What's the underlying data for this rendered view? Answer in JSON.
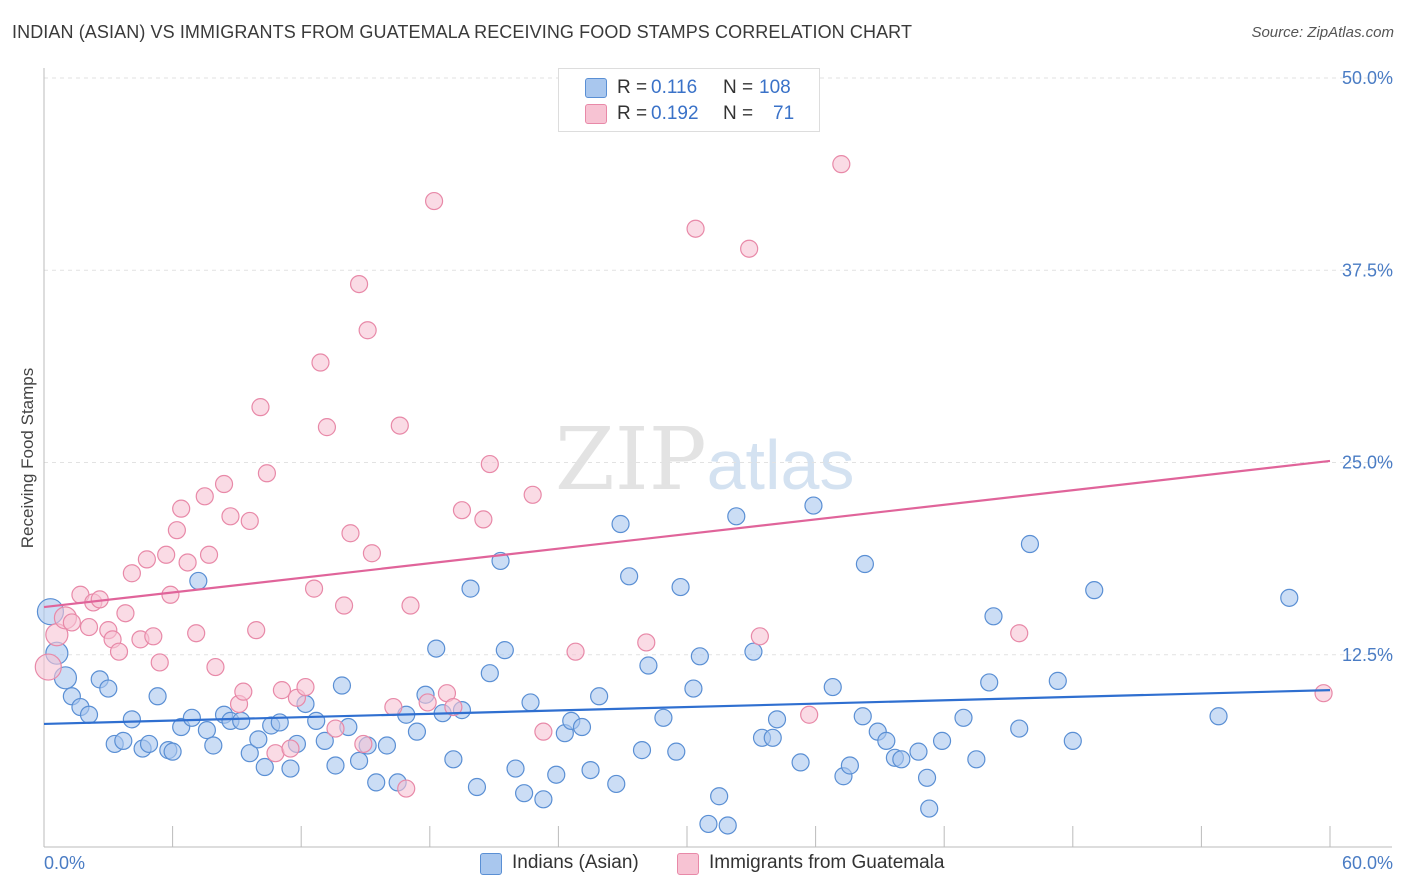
{
  "header": {
    "title": "INDIAN (ASIAN) VS IMMIGRANTS FROM GUATEMALA RECEIVING FOOD STAMPS CORRELATION CHART",
    "source": "Source: ZipAtlas.com"
  },
  "watermark": {
    "zip": "ZIP",
    "atlas": "atlas"
  },
  "legend": {
    "r_label": "R =",
    "n_label": "N =",
    "rows": [
      {
        "r": "0.116",
        "n": "108"
      },
      {
        "r": "0.192",
        "n": "71"
      }
    ]
  },
  "bottom_legend": {
    "blue": "Indians (Asian)",
    "pink": "Immigrants from Guatemala"
  },
  "colors": {
    "blue_fill": "#a9c7ee",
    "blue_stroke": "#5a8fd4",
    "blue_line": "#2f6fd0",
    "pink_fill": "#f7c3d3",
    "pink_stroke": "#e889a8",
    "pink_line": "#e0649a",
    "tick_text": "#4a7cc4"
  },
  "chart_data": {
    "type": "scatter",
    "title": "INDIAN (ASIAN) VS IMMIGRANTS FROM GUATEMALA RECEIVING FOOD STAMPS CORRELATION CHART",
    "xlabel": "",
    "ylabel": "Receiving Food Stamps",
    "xlim": [
      0,
      60
    ],
    "ylim": [
      0,
      50
    ],
    "x_tick_labels": [
      "0.0%",
      "60.0%"
    ],
    "y_tick_values": [
      12.5,
      25.0,
      37.5,
      50.0
    ],
    "y_tick_labels": [
      "12.5%",
      "25.0%",
      "37.5%",
      "50.0%"
    ],
    "grid": true,
    "legend_position": "top-center",
    "series": [
      {
        "name": "Indians (Asian)",
        "color": "#a9c7ee",
        "trend": {
          "x": [
            0,
            60
          ],
          "y": [
            8.0,
            10.2
          ]
        },
        "points": [
          [
            0.3,
            15.3
          ],
          [
            0.6,
            12.6
          ],
          [
            1.0,
            11.0
          ],
          [
            1.3,
            9.8
          ],
          [
            1.7,
            9.1
          ],
          [
            2.1,
            8.6
          ],
          [
            2.6,
            10.9
          ],
          [
            3.0,
            10.3
          ],
          [
            3.3,
            6.7
          ],
          [
            3.7,
            6.9
          ],
          [
            4.1,
            8.3
          ],
          [
            4.6,
            6.4
          ],
          [
            4.9,
            6.7
          ],
          [
            5.3,
            9.8
          ],
          [
            5.8,
            6.3
          ],
          [
            6.0,
            6.2
          ],
          [
            6.4,
            7.8
          ],
          [
            6.9,
            8.4
          ],
          [
            7.2,
            17.3
          ],
          [
            7.6,
            7.6
          ],
          [
            7.9,
            6.6
          ],
          [
            8.4,
            8.6
          ],
          [
            8.7,
            8.2
          ],
          [
            9.2,
            8.2
          ],
          [
            9.6,
            6.1
          ],
          [
            10.0,
            7.0
          ],
          [
            10.3,
            5.2
          ],
          [
            10.6,
            7.9
          ],
          [
            11.0,
            8.1
          ],
          [
            11.5,
            5.1
          ],
          [
            11.8,
            6.7
          ],
          [
            12.2,
            9.3
          ],
          [
            12.7,
            8.2
          ],
          [
            13.1,
            6.9
          ],
          [
            13.6,
            5.3
          ],
          [
            13.9,
            10.5
          ],
          [
            14.2,
            7.8
          ],
          [
            14.7,
            5.6
          ],
          [
            15.1,
            6.6
          ],
          [
            15.5,
            4.2
          ],
          [
            16.0,
            6.6
          ],
          [
            16.5,
            4.2
          ],
          [
            16.9,
            8.6
          ],
          [
            17.4,
            7.5
          ],
          [
            17.8,
            9.9
          ],
          [
            18.3,
            12.9
          ],
          [
            18.6,
            8.7
          ],
          [
            19.1,
            5.7
          ],
          [
            19.5,
            8.9
          ],
          [
            19.9,
            16.8
          ],
          [
            20.2,
            3.9
          ],
          [
            20.8,
            11.3
          ],
          [
            21.3,
            18.6
          ],
          [
            21.5,
            12.8
          ],
          [
            22.0,
            5.1
          ],
          [
            22.4,
            3.5
          ],
          [
            22.7,
            9.4
          ],
          [
            23.3,
            3.1
          ],
          [
            23.9,
            4.7
          ],
          [
            24.3,
            7.4
          ],
          [
            24.6,
            8.2
          ],
          [
            25.1,
            7.8
          ],
          [
            25.5,
            5.0
          ],
          [
            25.9,
            9.8
          ],
          [
            26.7,
            4.1
          ],
          [
            26.9,
            21.0
          ],
          [
            27.3,
            17.6
          ],
          [
            27.9,
            6.3
          ],
          [
            28.2,
            11.8
          ],
          [
            28.9,
            8.4
          ],
          [
            29.5,
            6.2
          ],
          [
            29.7,
            16.9
          ],
          [
            30.3,
            10.3
          ],
          [
            30.6,
            12.4
          ],
          [
            31.0,
            1.5
          ],
          [
            31.5,
            3.3
          ],
          [
            31.9,
            1.4
          ],
          [
            32.3,
            21.5
          ],
          [
            33.1,
            12.7
          ],
          [
            33.5,
            7.1
          ],
          [
            34.0,
            7.1
          ],
          [
            34.2,
            8.3
          ],
          [
            35.3,
            5.5
          ],
          [
            35.9,
            22.2
          ],
          [
            36.8,
            10.4
          ],
          [
            37.3,
            4.6
          ],
          [
            37.6,
            5.3
          ],
          [
            38.2,
            8.5
          ],
          [
            38.3,
            18.4
          ],
          [
            38.9,
            7.5
          ],
          [
            39.3,
            6.9
          ],
          [
            39.7,
            5.8
          ],
          [
            40.0,
            5.7
          ],
          [
            40.8,
            6.2
          ],
          [
            41.2,
            4.5
          ],
          [
            41.3,
            2.5
          ],
          [
            41.9,
            6.9
          ],
          [
            42.9,
            8.4
          ],
          [
            43.5,
            5.7
          ],
          [
            44.1,
            10.7
          ],
          [
            44.3,
            15.0
          ],
          [
            45.5,
            7.7
          ],
          [
            46.0,
            19.7
          ],
          [
            47.3,
            10.8
          ],
          [
            48.0,
            6.9
          ],
          [
            49.0,
            16.7
          ],
          [
            54.8,
            8.5
          ],
          [
            58.1,
            16.2
          ]
        ]
      },
      {
        "name": "Immigrants from Guatemala",
        "color": "#f7c3d3",
        "trend": {
          "x": [
            0,
            60
          ],
          "y": [
            15.6,
            25.1
          ]
        },
        "points": [
          [
            0.2,
            11.7
          ],
          [
            0.6,
            13.8
          ],
          [
            1.0,
            14.9
          ],
          [
            1.3,
            14.6
          ],
          [
            1.7,
            16.4
          ],
          [
            2.1,
            14.3
          ],
          [
            2.3,
            15.9
          ],
          [
            2.6,
            16.1
          ],
          [
            3.0,
            14.1
          ],
          [
            3.2,
            13.5
          ],
          [
            3.5,
            12.7
          ],
          [
            3.8,
            15.2
          ],
          [
            4.1,
            17.8
          ],
          [
            4.5,
            13.5
          ],
          [
            4.8,
            18.7
          ],
          [
            5.1,
            13.7
          ],
          [
            5.4,
            12.0
          ],
          [
            5.7,
            19.0
          ],
          [
            5.9,
            16.4
          ],
          [
            6.2,
            20.6
          ],
          [
            6.4,
            22.0
          ],
          [
            6.7,
            18.5
          ],
          [
            7.1,
            13.9
          ],
          [
            7.5,
            22.8
          ],
          [
            7.7,
            19.0
          ],
          [
            8.0,
            11.7
          ],
          [
            8.4,
            23.6
          ],
          [
            8.7,
            21.5
          ],
          [
            9.1,
            9.3
          ],
          [
            9.3,
            10.1
          ],
          [
            9.6,
            21.2
          ],
          [
            9.9,
            14.1
          ],
          [
            10.1,
            28.6
          ],
          [
            10.4,
            24.3
          ],
          [
            10.8,
            6.1
          ],
          [
            11.1,
            10.2
          ],
          [
            11.5,
            6.4
          ],
          [
            11.8,
            9.7
          ],
          [
            12.2,
            10.4
          ],
          [
            12.6,
            16.8
          ],
          [
            12.9,
            31.5
          ],
          [
            13.2,
            27.3
          ],
          [
            13.6,
            7.7
          ],
          [
            14.0,
            15.7
          ],
          [
            14.3,
            20.4
          ],
          [
            14.7,
            36.6
          ],
          [
            14.9,
            6.7
          ],
          [
            15.1,
            33.6
          ],
          [
            15.3,
            19.1
          ],
          [
            16.3,
            9.1
          ],
          [
            16.6,
            27.4
          ],
          [
            16.9,
            3.8
          ],
          [
            17.1,
            15.7
          ],
          [
            17.9,
            9.4
          ],
          [
            18.2,
            42.0
          ],
          [
            18.8,
            10.0
          ],
          [
            19.1,
            9.1
          ],
          [
            19.5,
            21.9
          ],
          [
            20.5,
            21.3
          ],
          [
            20.8,
            24.9
          ],
          [
            22.8,
            22.9
          ],
          [
            23.3,
            7.5
          ],
          [
            24.8,
            12.7
          ],
          [
            28.1,
            13.3
          ],
          [
            30.4,
            40.2
          ],
          [
            32.9,
            38.9
          ],
          [
            33.4,
            13.7
          ],
          [
            35.7,
            8.6
          ],
          [
            37.2,
            44.4
          ],
          [
            45.5,
            13.9
          ],
          [
            59.7,
            10.0
          ]
        ]
      }
    ]
  }
}
